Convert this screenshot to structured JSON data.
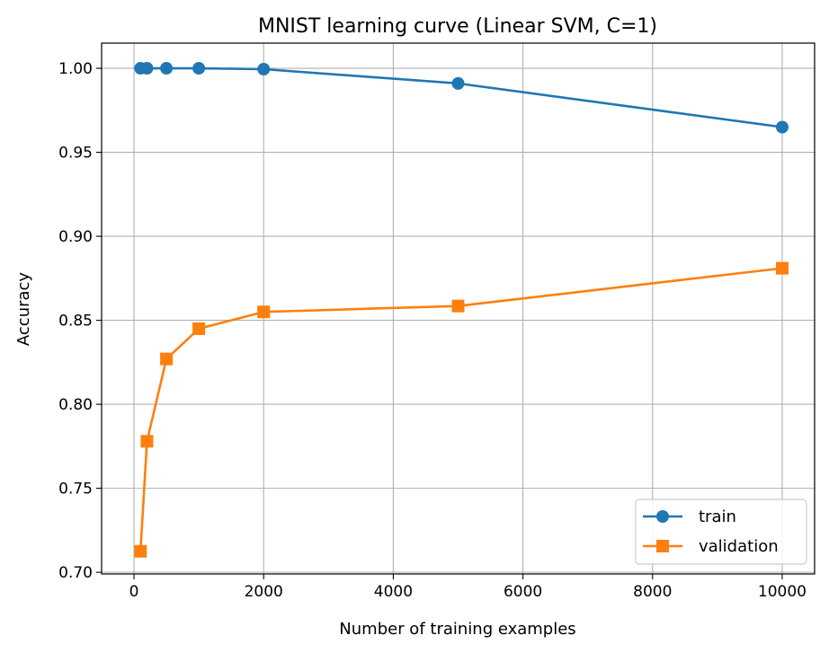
{
  "chart_data": {
    "type": "line",
    "title": "MNIST learning curve (Linear SVM, C=1)",
    "xlabel": "Number of training examples",
    "ylabel": "Accuracy",
    "xlim": [
      -500,
      10500
    ],
    "ylim": [
      0.699,
      1.015
    ],
    "xticks": [
      0,
      2000,
      4000,
      6000,
      8000,
      10000
    ],
    "xtick_labels": [
      "0",
      "2000",
      "4000",
      "6000",
      "8000",
      "10000"
    ],
    "yticks": [
      0.7,
      0.75,
      0.8,
      0.85,
      0.9,
      0.95,
      1.0
    ],
    "ytick_labels": [
      "0.70",
      "0.75",
      "0.80",
      "0.85",
      "0.90",
      "0.95",
      "1.00"
    ],
    "grid": true,
    "legend": {
      "placement": "lower-right",
      "entries": [
        "train",
        "validation"
      ]
    },
    "x": [
      100,
      200,
      500,
      1000,
      2000,
      5000,
      10000
    ],
    "series": [
      {
        "name": "train",
        "color": "#1f77b4",
        "marker": "circle",
        "values": [
          1.0,
          1.0,
          1.0,
          1.0,
          0.9995,
          0.991,
          0.965
        ]
      },
      {
        "name": "validation",
        "color": "#ff7f0e",
        "marker": "square",
        "values": [
          0.7125,
          0.778,
          0.827,
          0.845,
          0.855,
          0.8585,
          0.881
        ]
      }
    ]
  }
}
